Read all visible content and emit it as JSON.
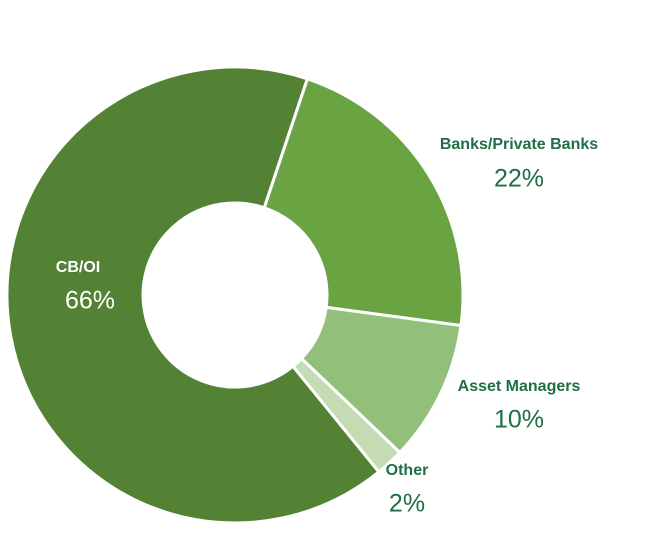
{
  "chart_data": {
    "type": "donut",
    "categories": [
      "CB/OI",
      "Banks/Private Banks",
      "Asset Managers",
      "Other"
    ],
    "values": [
      66,
      22,
      10,
      2
    ],
    "value_labels": [
      "66%",
      "22%",
      "10%",
      "2%"
    ],
    "colors": [
      "#548235",
      "#6aa442",
      "#92c07a",
      "#c3dcb3"
    ]
  }
}
